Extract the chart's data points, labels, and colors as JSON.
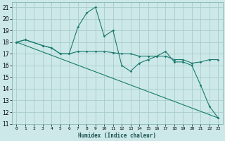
{
  "xlabel": "Humidex (Indice chaleur)",
  "background_color": "#cce8e8",
  "grid_color": "#aacccc",
  "line_color": "#1a7a6e",
  "xlim": [
    -0.5,
    23.5
  ],
  "ylim": [
    11,
    21.4
  ],
  "xticks": [
    0,
    1,
    2,
    3,
    4,
    5,
    6,
    7,
    8,
    9,
    10,
    11,
    12,
    13,
    14,
    15,
    16,
    17,
    18,
    19,
    20,
    21,
    22,
    23
  ],
  "yticks": [
    11,
    12,
    13,
    14,
    15,
    16,
    17,
    18,
    19,
    20,
    21
  ],
  "series": [
    {
      "x": [
        0,
        1,
        3,
        4,
        5,
        6,
        7,
        8,
        9,
        10,
        11,
        12,
        13,
        14,
        15,
        16,
        17,
        18,
        19,
        20,
        21,
        22,
        23
      ],
      "y": [
        18,
        18.2,
        17.7,
        17.5,
        17.0,
        17.0,
        17.2,
        17.2,
        17.2,
        17.2,
        17.1,
        17.0,
        17.0,
        16.8,
        16.8,
        16.8,
        16.8,
        16.5,
        16.5,
        16.2,
        16.3,
        16.5,
        16.5
      ]
    },
    {
      "x": [
        0,
        1,
        3,
        4,
        5,
        6,
        7,
        8,
        9,
        10,
        11,
        12,
        13,
        14,
        15,
        16,
        17,
        18,
        19,
        20,
        21,
        22,
        23
      ],
      "y": [
        18,
        18.2,
        17.7,
        17.5,
        17.0,
        17.0,
        19.3,
        20.5,
        21.0,
        18.5,
        19.0,
        16.0,
        15.5,
        16.2,
        16.5,
        16.8,
        17.2,
        16.3,
        16.3,
        16.0,
        14.3,
        12.5,
        11.5
      ]
    },
    {
      "x": [
        0,
        23
      ],
      "y": [
        18,
        11.5
      ]
    }
  ]
}
